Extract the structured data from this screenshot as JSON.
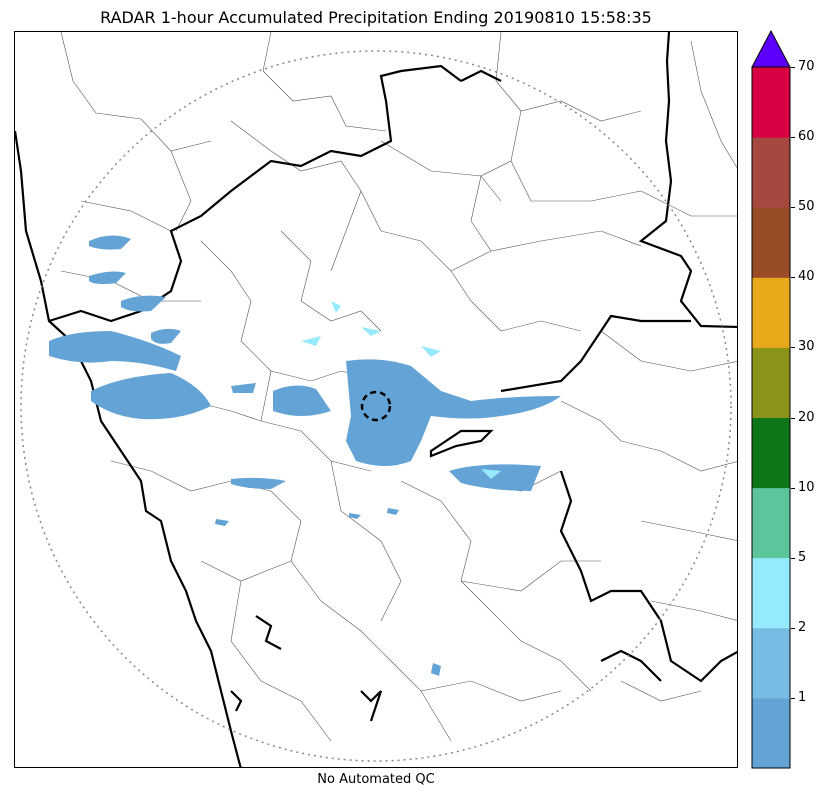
{
  "title": "RADAR 1-hour Accumulated Precipitation Ending 20190810 15:58:35",
  "footer": "No Automated QC",
  "colorbar": {
    "tick_labels": [
      "1",
      "2",
      "5",
      "10",
      "20",
      "30",
      "40",
      "50",
      "60",
      "70"
    ],
    "bands": [
      {
        "label": "0-1",
        "color": "#64a3d6"
      },
      {
        "label": "1-2",
        "color": "#77bde3"
      },
      {
        "label": "2-5",
        "color": "#95ebfd"
      },
      {
        "label": "5-10",
        "color": "#5dc59c"
      },
      {
        "label": "10-20",
        "color": "#0c7619"
      },
      {
        "label": "20-30",
        "color": "#8b9419"
      },
      {
        "label": "30-40",
        "color": "#e8a91b"
      },
      {
        "label": "40-50",
        "color": "#984c27"
      },
      {
        "label": "50-60",
        "color": "#a5483f"
      },
      {
        "label": "60-70",
        "color": "#d80042"
      }
    ],
    "extend_color": "#5b00fb"
  },
  "colors": {
    "state_border": "#000000",
    "district_border": "#555555",
    "range_ring": "#888888",
    "precip_light": "#64a3d6",
    "precip_moderate": "#95ebfd"
  }
}
